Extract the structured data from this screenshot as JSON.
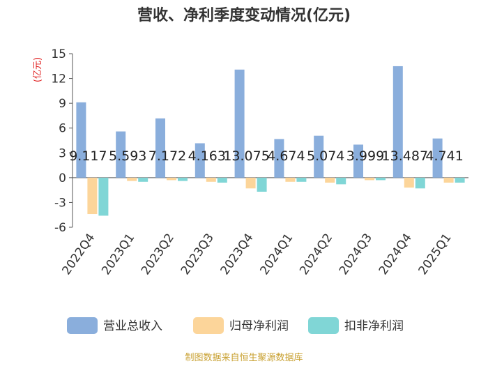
{
  "chart_data": {
    "type": "bar",
    "title": "营收、净利季度变动情况(亿元)",
    "ylabel": "(亿元)",
    "ylim": [
      -6,
      15
    ],
    "yticks": [
      15,
      12,
      9,
      6,
      3,
      0,
      -3,
      -6
    ],
    "categories": [
      "2022Q4",
      "2023Q1",
      "2023Q2",
      "2023Q3",
      "2023Q4",
      "2024Q1",
      "2024Q2",
      "2024Q3",
      "2024Q4",
      "2025Q1"
    ],
    "series": [
      {
        "name": "营业总收入",
        "color": "#8aaedc",
        "values": [
          9.117,
          5.593,
          7.172,
          4.163,
          13.075,
          4.674,
          5.074,
          3.999,
          13.487,
          4.741
        ]
      },
      {
        "name": "归母净利润",
        "color": "#fcd59a",
        "values": [
          -4.4,
          -0.4,
          -0.3,
          -0.5,
          -1.3,
          -0.5,
          -0.6,
          -0.3,
          -1.2,
          -0.6
        ]
      },
      {
        "name": "扣非净利润",
        "color": "#80d6d6",
        "values": [
          -4.6,
          -0.5,
          -0.4,
          -0.6,
          -1.7,
          -0.5,
          -0.8,
          -0.3,
          -1.3,
          -0.6
        ]
      }
    ],
    "data_labels": [
      "9.117",
      "5.593",
      "7.172",
      "4.163",
      "13.075",
      "4.674",
      "5.074",
      "3.999",
      "13.487",
      "4.741"
    ],
    "grid": false,
    "legend_position": "bottom"
  },
  "source": "制图数据来自恒生聚源数据库"
}
